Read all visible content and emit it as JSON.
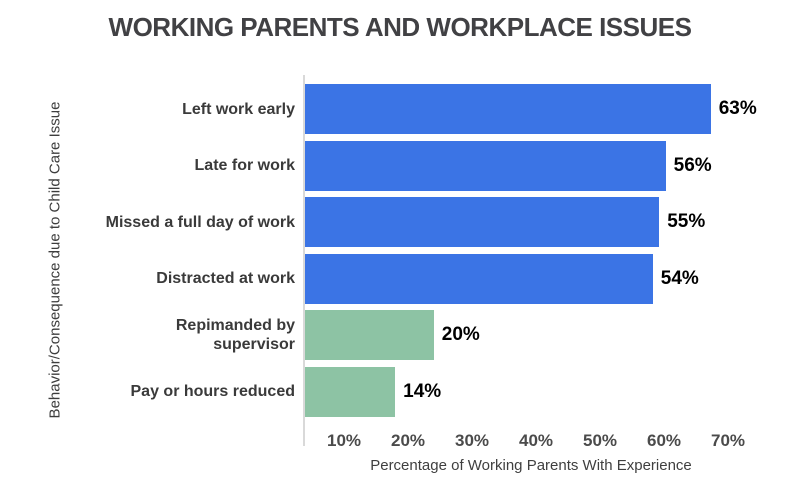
{
  "page_title": "WORKING PARENTS AND WORKPLACE ISSUES",
  "chart_data": {
    "type": "bar",
    "orientation": "horizontal",
    "title": "WORKING PARENTS AND WORKPLACE ISSUES",
    "xlabel": "Percentage of Working Parents With Experience",
    "ylabel": "Behavior/Consequence due to Child Care Issue",
    "categories": [
      "Left work early",
      "Late for work",
      "Missed a full day of work",
      "Distracted at work",
      "Repimanded by supervisor",
      "Pay or hours reduced"
    ],
    "category_display_lines": [
      [
        "Left work early"
      ],
      [
        "Late for work"
      ],
      [
        "Missed a full day of work"
      ],
      [
        "Distracted at work"
      ],
      [
        "Repimanded by",
        "supervisor"
      ],
      [
        "Pay or hours reduced"
      ]
    ],
    "series": [
      {
        "name": "Percentage of Working Parents With Experience",
        "values": [
          63,
          56,
          55,
          54,
          20,
          14
        ]
      }
    ],
    "value_labels": [
      "63%",
      "56%",
      "55%",
      "54%",
      "20%",
      "14%"
    ],
    "bar_colors": [
      "#3b74e5",
      "#3b74e5",
      "#3b74e5",
      "#3b74e5",
      "#8dc3a4",
      "#8dc3a4"
    ],
    "x_ticks": [
      "10%",
      "20%",
      "30%",
      "40%",
      "50%",
      "60%",
      "70%"
    ],
    "xlim": [
      0,
      70
    ],
    "grid": false,
    "legend": "none"
  },
  "colors": {
    "bar_blue": "#3b74e5",
    "bar_green": "#8dc3a4",
    "title_text": "#414144",
    "category_text": "#3a3a3a",
    "tick_text": "#4b4b4b",
    "value_text": "#000000",
    "axis_line": "#d9d9d9",
    "background": "#ffffff"
  }
}
